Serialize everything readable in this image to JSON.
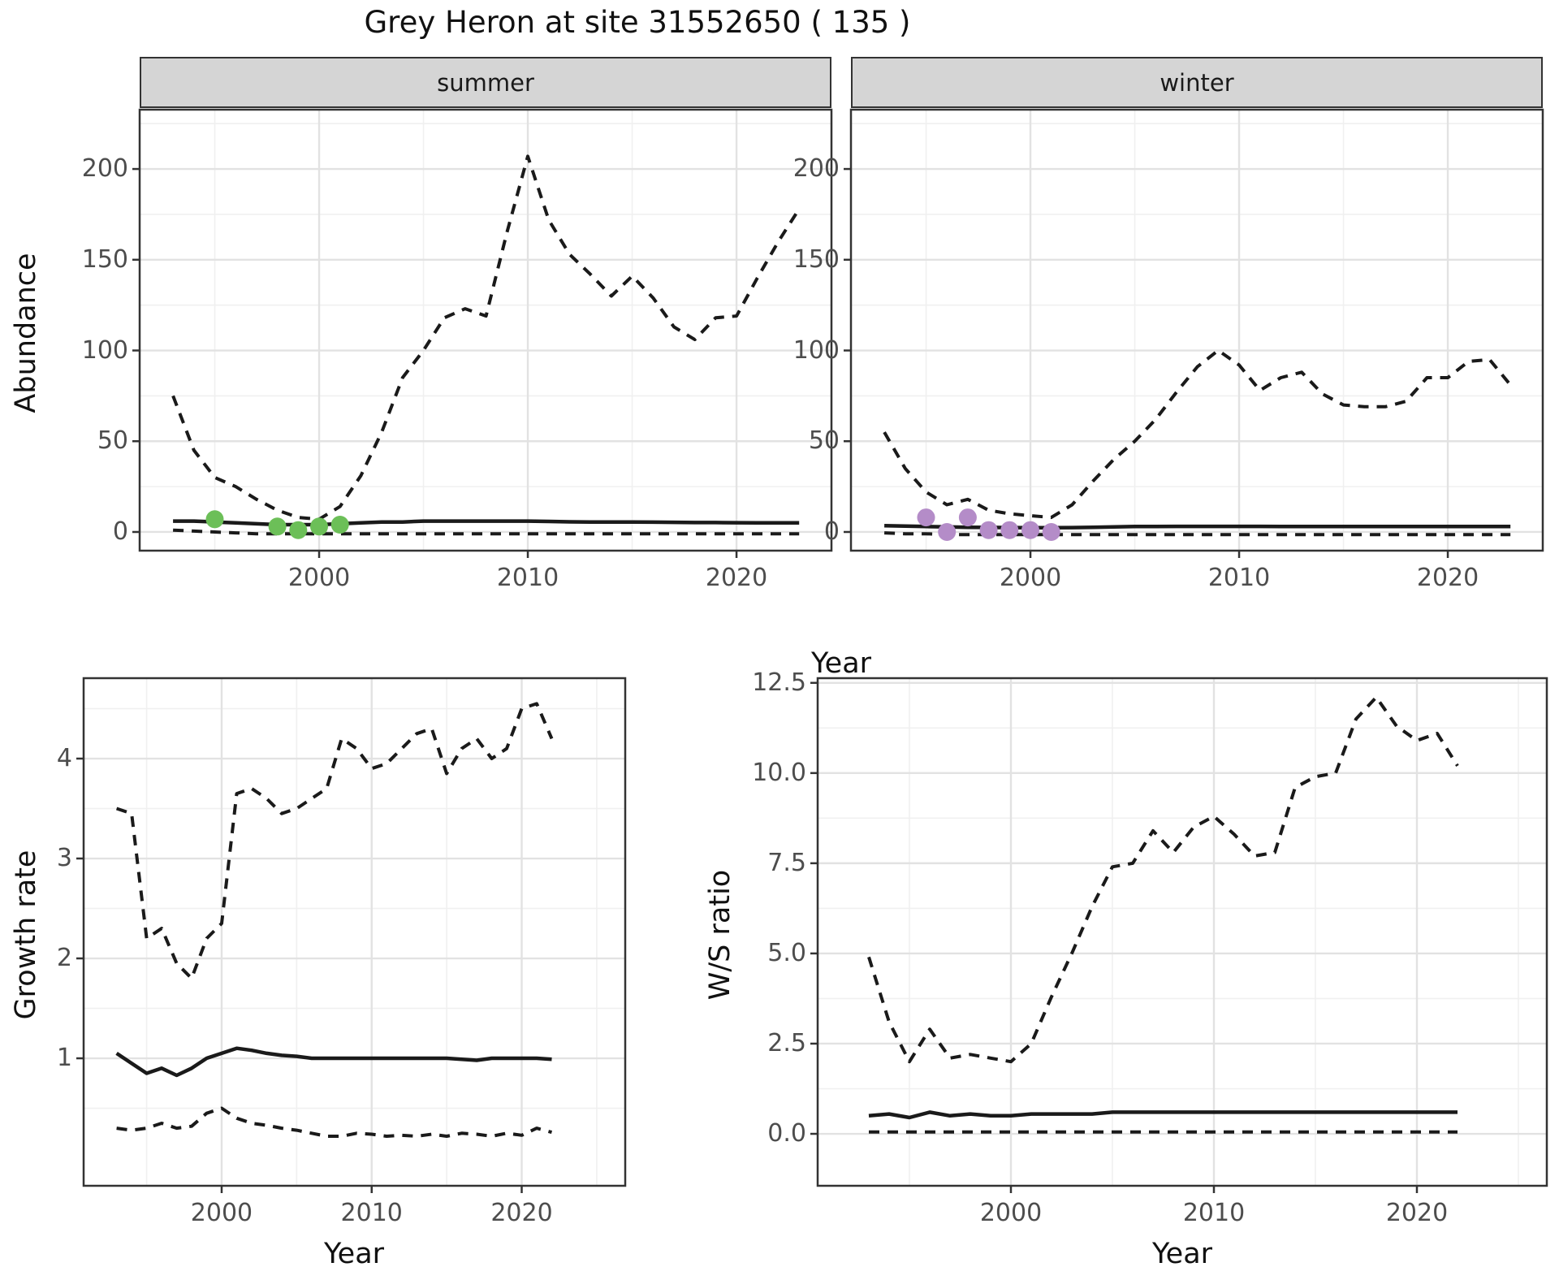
{
  "title": "Grey Heron at site 31552650 ( 135 )",
  "facets": {
    "summer": "summer",
    "winter": "winter"
  },
  "axes": {
    "abundance": "Abundance",
    "growth_rate": "Growth rate",
    "ws_ratio": "W/S ratio",
    "year_top": "Year",
    "year_bottom_left": "Year",
    "year_bottom_right": "Year"
  },
  "colors": {
    "summer_points": "#6cbf58",
    "winter_points": "#b48cc8",
    "line": "#1a1a1a",
    "strip_bg": "#d5d5d5",
    "panel_border": "#333333",
    "grid_major": "#e2e2e2",
    "grid_minor": "#f0f0f0",
    "tick_text": "#4d4d4d"
  },
  "chart_data": [
    {
      "id": "abundance_summer",
      "type": "line",
      "facet": "summer",
      "xlabel": "Year",
      "ylabel": "Abundance",
      "xlim": [
        1991.4,
        2024.55
      ],
      "ylim": [
        -10.3,
        232.7
      ],
      "xticks": [
        2000,
        2010,
        2020
      ],
      "xtick_labels": [
        "2000",
        "2010",
        "2020"
      ],
      "yticks": [
        0,
        50,
        100,
        150,
        200
      ],
      "ytick_labels": [
        "0",
        "50",
        "100",
        "150",
        "200"
      ],
      "x_minor": [
        1995,
        2005,
        2015
      ],
      "y_minor": [
        25,
        75,
        125,
        175,
        225
      ],
      "x": [
        1993,
        1994,
        1995,
        1996,
        1997,
        1998,
        1999,
        2000,
        2001,
        2002,
        2003,
        2004,
        2005,
        2006,
        2007,
        2008,
        2009,
        2010,
        2011,
        2012,
        2013,
        2014,
        2015,
        2016,
        2017,
        2018,
        2019,
        2020,
        2021,
        2022,
        2023
      ],
      "series": [
        {
          "name": "upper_ci",
          "style": "dashed",
          "values": [
            75,
            45,
            30,
            25,
            18,
            12,
            8,
            7,
            14,
            31,
            55,
            85,
            100,
            118,
            123,
            119,
            165,
            207,
            172,
            153,
            142,
            130,
            141,
            129,
            113,
            106,
            118,
            119,
            140,
            160,
            178
          ]
        },
        {
          "name": "mean",
          "style": "solid",
          "values": [
            6,
            6,
            5.5,
            5,
            4.5,
            4,
            4,
            4,
            4.5,
            5,
            5.5,
            5.5,
            6,
            6,
            6,
            6,
            6,
            6,
            5.8,
            5.6,
            5.5,
            5.5,
            5.5,
            5.4,
            5.3,
            5.2,
            5.2,
            5.1,
            5,
            5,
            5
          ]
        },
        {
          "name": "lower_ci",
          "style": "dashed",
          "values": [
            1,
            0.5,
            0,
            -0.5,
            -1,
            -1,
            -1,
            -1,
            -1,
            -1,
            -1,
            -1,
            -1,
            -1,
            -1,
            -1,
            -1,
            -1,
            -1,
            -1,
            -1,
            -1,
            -1,
            -1,
            -1,
            -1,
            -1,
            -1,
            -1,
            -1,
            -1
          ]
        }
      ],
      "points": {
        "name": "observations",
        "color_key": "summer_points",
        "xy": [
          [
            1995,
            7
          ],
          [
            1998,
            3
          ],
          [
            1999,
            1
          ],
          [
            2000,
            3
          ],
          [
            2001,
            4
          ]
        ]
      }
    },
    {
      "id": "abundance_winter",
      "type": "line",
      "facet": "winter",
      "xlabel": "Year",
      "ylabel": "Abundance",
      "xlim": [
        1991.4,
        2024.55
      ],
      "ylim": [
        -10.3,
        232.7
      ],
      "xticks": [
        2000,
        2010,
        2020
      ],
      "xtick_labels": [
        "2000",
        "2010",
        "2020"
      ],
      "yticks": [
        0,
        50,
        100,
        150,
        200
      ],
      "ytick_labels": [
        "0",
        "50",
        "100",
        "150",
        "200"
      ],
      "x_minor": [
        1995,
        2005,
        2015
      ],
      "y_minor": [
        25,
        75,
        125,
        175,
        225
      ],
      "x": [
        1993,
        1994,
        1995,
        1996,
        1997,
        1998,
        1999,
        2000,
        2001,
        2002,
        2003,
        2004,
        2005,
        2006,
        2007,
        2008,
        2009,
        2010,
        2011,
        2012,
        2013,
        2014,
        2015,
        2016,
        2017,
        2018,
        2019,
        2020,
        2021,
        2022,
        2023
      ],
      "series": [
        {
          "name": "upper_ci",
          "style": "dashed",
          "values": [
            55,
            35,
            22,
            15,
            18,
            12,
            10,
            9,
            8,
            15,
            28,
            40,
            50,
            62,
            77,
            91,
            100,
            92,
            78,
            85,
            88,
            76,
            70,
            69,
            69,
            72,
            85,
            85,
            94,
            95,
            81
          ]
        },
        {
          "name": "mean",
          "style": "solid",
          "values": [
            3.5,
            3.2,
            3,
            2.8,
            2.6,
            2.5,
            2.4,
            2.3,
            2.3,
            2.4,
            2.6,
            2.8,
            3,
            3,
            3.1,
            3.1,
            3.1,
            3.1,
            3.1,
            3,
            3,
            3,
            3,
            3,
            3,
            3,
            3,
            3,
            3,
            3,
            3
          ]
        },
        {
          "name": "lower_ci",
          "style": "dashed",
          "values": [
            -0.5,
            -1,
            -1,
            -1.5,
            -1.5,
            -1.5,
            -1.5,
            -1.5,
            -1.5,
            -1.5,
            -1.5,
            -1.5,
            -1.5,
            -1.5,
            -1.5,
            -1.5,
            -1.5,
            -1.5,
            -1.5,
            -1.5,
            -1.5,
            -1.5,
            -1.5,
            -1.5,
            -1.5,
            -1.5,
            -1.5,
            -1.5,
            -1.5,
            -1.5,
            -1.5
          ]
        }
      ],
      "points": {
        "name": "observations",
        "color_key": "winter_points",
        "xy": [
          [
            1995,
            8
          ],
          [
            1996,
            0
          ],
          [
            1997,
            8
          ],
          [
            1998,
            1
          ],
          [
            1999,
            1
          ],
          [
            2000,
            1
          ],
          [
            2001,
            0
          ]
        ]
      }
    },
    {
      "id": "growth_rate",
      "type": "line",
      "facet": null,
      "xlabel": "Year",
      "ylabel": "Growth rate",
      "xlim": [
        1990.8,
        2026.9
      ],
      "ylim": [
        -0.276,
        4.805
      ],
      "xticks": [
        2000,
        2010,
        2020
      ],
      "xtick_labels": [
        "2000",
        "2010",
        "2020"
      ],
      "yticks": [
        1,
        2,
        3,
        4
      ],
      "ytick_labels": [
        "1",
        "2",
        "3",
        "4"
      ],
      "x_minor": [
        1995,
        2005,
        2015,
        2025
      ],
      "y_minor": [
        0.5,
        1.5,
        2.5,
        3.5,
        4.5
      ],
      "x": [
        1993,
        1994,
        1995,
        1996,
        1997,
        1998,
        1999,
        2000,
        2001,
        2002,
        2003,
        2004,
        2005,
        2006,
        2007,
        2008,
        2009,
        2010,
        2011,
        2012,
        2013,
        2014,
        2015,
        2016,
        2017,
        2018,
        2019,
        2020,
        2021,
        2022
      ],
      "series": [
        {
          "name": "upper_ci",
          "style": "dashed",
          "values": [
            3.5,
            3.45,
            2.2,
            2.3,
            1.95,
            1.8,
            2.2,
            2.35,
            3.65,
            3.7,
            3.6,
            3.45,
            3.5,
            3.6,
            3.7,
            4.2,
            4.1,
            3.9,
            3.95,
            4.1,
            4.25,
            4.3,
            3.85,
            4.1,
            4.2,
            4.0,
            4.1,
            4.5,
            4.55,
            4.2
          ]
        },
        {
          "name": "mean",
          "style": "solid",
          "values": [
            1.05,
            0.95,
            0.85,
            0.9,
            0.83,
            0.9,
            1.0,
            1.05,
            1.1,
            1.08,
            1.05,
            1.03,
            1.02,
            1.0,
            1.0,
            1.0,
            1.0,
            1.0,
            1.0,
            1.0,
            1.0,
            1.0,
            1.0,
            0.99,
            0.98,
            1.0,
            1.0,
            1.0,
            1.0,
            0.99
          ]
        },
        {
          "name": "lower_ci",
          "style": "dashed",
          "values": [
            0.3,
            0.28,
            0.3,
            0.35,
            0.3,
            0.32,
            0.45,
            0.5,
            0.4,
            0.35,
            0.33,
            0.3,
            0.28,
            0.25,
            0.22,
            0.22,
            0.25,
            0.24,
            0.22,
            0.23,
            0.22,
            0.24,
            0.22,
            0.25,
            0.24,
            0.22,
            0.25,
            0.23,
            0.3,
            0.26
          ]
        }
      ],
      "points": null
    },
    {
      "id": "ws_ratio",
      "type": "line",
      "facet": null,
      "xlabel": "Year",
      "ylabel": "W/S ratio",
      "xlim": [
        1990.48,
        2026.4
      ],
      "ylim": [
        -1.44,
        12.63
      ],
      "xticks": [
        2000,
        2010,
        2020
      ],
      "xtick_labels": [
        "2000",
        "2010",
        "2020"
      ],
      "yticks": [
        0,
        2.5,
        5,
        7.5,
        10,
        12.5
      ],
      "ytick_labels": [
        "0.0",
        "2.5",
        "5.0",
        "7.5",
        "10.0",
        "12.5"
      ],
      "x_minor": [
        1995,
        2005,
        2015,
        2025
      ],
      "y_minor": [
        1.25,
        3.75,
        6.25,
        8.75,
        11.25
      ],
      "x": [
        1993,
        1994,
        1995,
        1996,
        1997,
        1998,
        1999,
        2000,
        2001,
        2002,
        2003,
        2004,
        2005,
        2006,
        2007,
        2008,
        2009,
        2010,
        2011,
        2012,
        2013,
        2014,
        2015,
        2016,
        2017,
        2018,
        2019,
        2020,
        2021,
        2022
      ],
      "series": [
        {
          "name": "upper_ci",
          "style": "dashed",
          "values": [
            4.9,
            3.1,
            2.0,
            2.9,
            2.1,
            2.2,
            2.1,
            2.0,
            2.5,
            3.8,
            5.0,
            6.3,
            7.4,
            7.5,
            8.4,
            7.8,
            8.5,
            8.8,
            8.3,
            7.7,
            7.8,
            9.6,
            9.9,
            10.0,
            11.5,
            12.1,
            11.3,
            10.9,
            11.1,
            10.2
          ]
        },
        {
          "name": "mean",
          "style": "solid",
          "values": [
            0.5,
            0.55,
            0.45,
            0.6,
            0.5,
            0.55,
            0.5,
            0.5,
            0.55,
            0.55,
            0.55,
            0.55,
            0.6,
            0.6,
            0.6,
            0.6,
            0.6,
            0.6,
            0.6,
            0.6,
            0.6,
            0.6,
            0.6,
            0.6,
            0.6,
            0.6,
            0.6,
            0.6,
            0.6,
            0.6
          ]
        },
        {
          "name": "lower_ci",
          "style": "dashed",
          "values": [
            0.05,
            0.05,
            0.05,
            0.05,
            0.05,
            0.05,
            0.05,
            0.05,
            0.05,
            0.05,
            0.05,
            0.05,
            0.05,
            0.05,
            0.05,
            0.05,
            0.05,
            0.05,
            0.05,
            0.05,
            0.05,
            0.05,
            0.05,
            0.05,
            0.05,
            0.05,
            0.05,
            0.05,
            0.05,
            0.05
          ]
        }
      ],
      "points": null
    }
  ]
}
